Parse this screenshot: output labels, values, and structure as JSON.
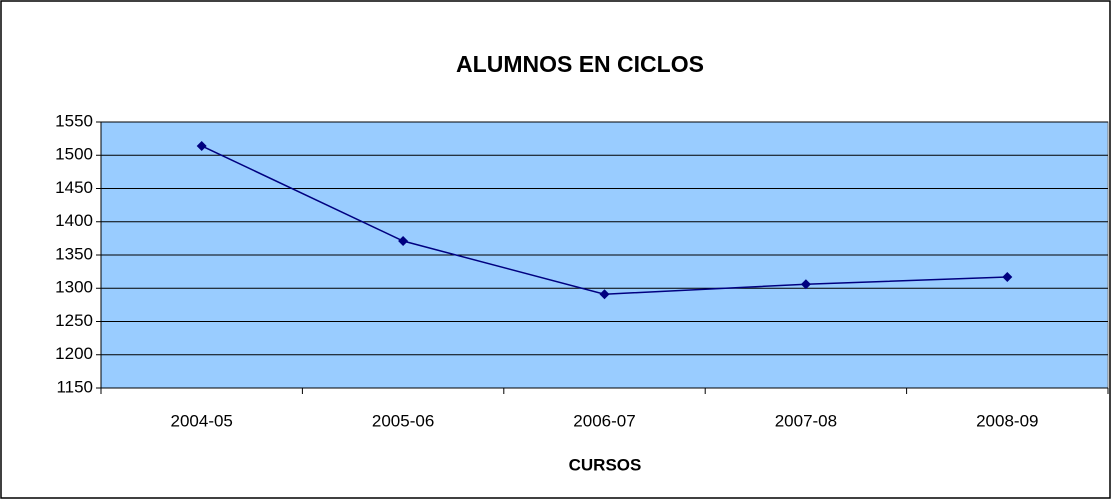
{
  "chart_data": {
    "type": "line",
    "title": "ALUMNOS EN CICLOS",
    "x_label": "CURSOS",
    "categories": [
      "2004-05",
      "2005-06",
      "2006-07",
      "2007-08",
      "2008-09"
    ],
    "series": [
      {
        "name": "ALUMNOS",
        "color": "#000080",
        "values": [
          1514,
          1371,
          1291,
          1306,
          1317
        ]
      }
    ],
    "ylim": [
      1150,
      1550
    ],
    "yticks": [
      1150,
      1200,
      1250,
      1300,
      1350,
      1400,
      1450,
      1500,
      1550
    ],
    "grid": true,
    "plot_background": "#99ccff"
  }
}
